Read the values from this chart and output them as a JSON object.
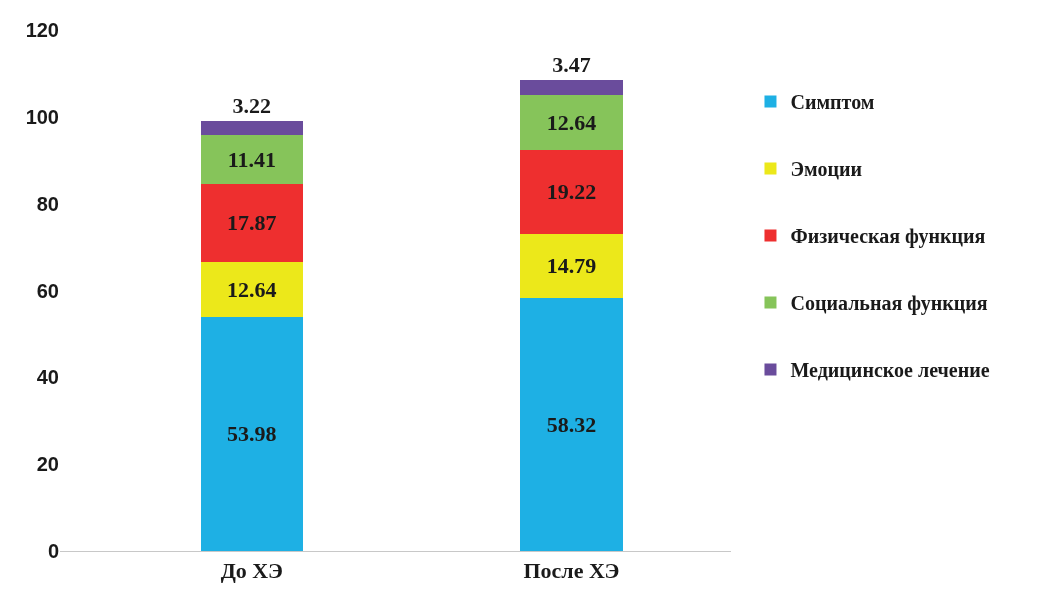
{
  "chart_data": {
    "type": "bar",
    "stacked": true,
    "categories": [
      "До ХЭ",
      "После ХЭ"
    ],
    "series": [
      {
        "name": "Симптом",
        "color": "#1eb0e4",
        "values": [
          53.98,
          58.32
        ]
      },
      {
        "name": "Эмоции",
        "color": "#ece81a",
        "values": [
          12.64,
          14.79
        ]
      },
      {
        "name": "Физическая функция",
        "color": "#ee2f2f",
        "values": [
          17.87,
          19.22
        ]
      },
      {
        "name": "Социальная функция",
        "color": "#86c45a",
        "values": [
          11.41,
          12.64
        ]
      },
      {
        "name": "Медицинское лечение",
        "color": "#6a4c9c",
        "values": [
          3.22,
          3.47
        ]
      }
    ],
    "ylim": [
      0,
      120
    ],
    "yticks": [
      0,
      20,
      40,
      60,
      80,
      100,
      120
    ],
    "legend": "right",
    "data_labels": true
  }
}
